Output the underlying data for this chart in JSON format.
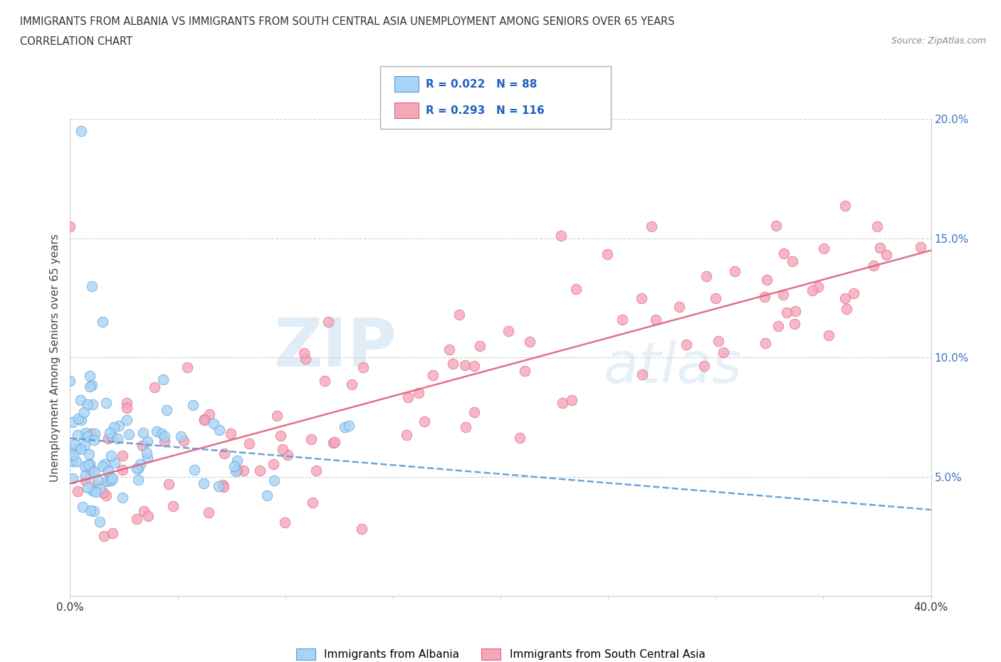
{
  "title_line1": "IMMIGRANTS FROM ALBANIA VS IMMIGRANTS FROM SOUTH CENTRAL ASIA UNEMPLOYMENT AMONG SENIORS OVER 65 YEARS",
  "title_line2": "CORRELATION CHART",
  "source_text": "Source: ZipAtlas.com",
  "ylabel": "Unemployment Among Seniors over 65 years",
  "xlim": [
    0.0,
    0.4
  ],
  "ylim": [
    0.0,
    0.2
  ],
  "albania_color": "#a8d4f5",
  "albania_edge_color": "#5b9bd5",
  "sca_color": "#f4a7b9",
  "sca_edge_color": "#e06080",
  "trend_albania_color": "#5b9bd5",
  "trend_sca_color": "#e06080",
  "r_albania": 0.022,
  "n_albania": 88,
  "r_sca": 0.293,
  "n_sca": 116,
  "watermark_zip": "ZIP",
  "watermark_atlas": "atlas",
  "legend_label_albania": "Immigrants from Albania",
  "legend_label_sca": "Immigrants from South Central Asia"
}
